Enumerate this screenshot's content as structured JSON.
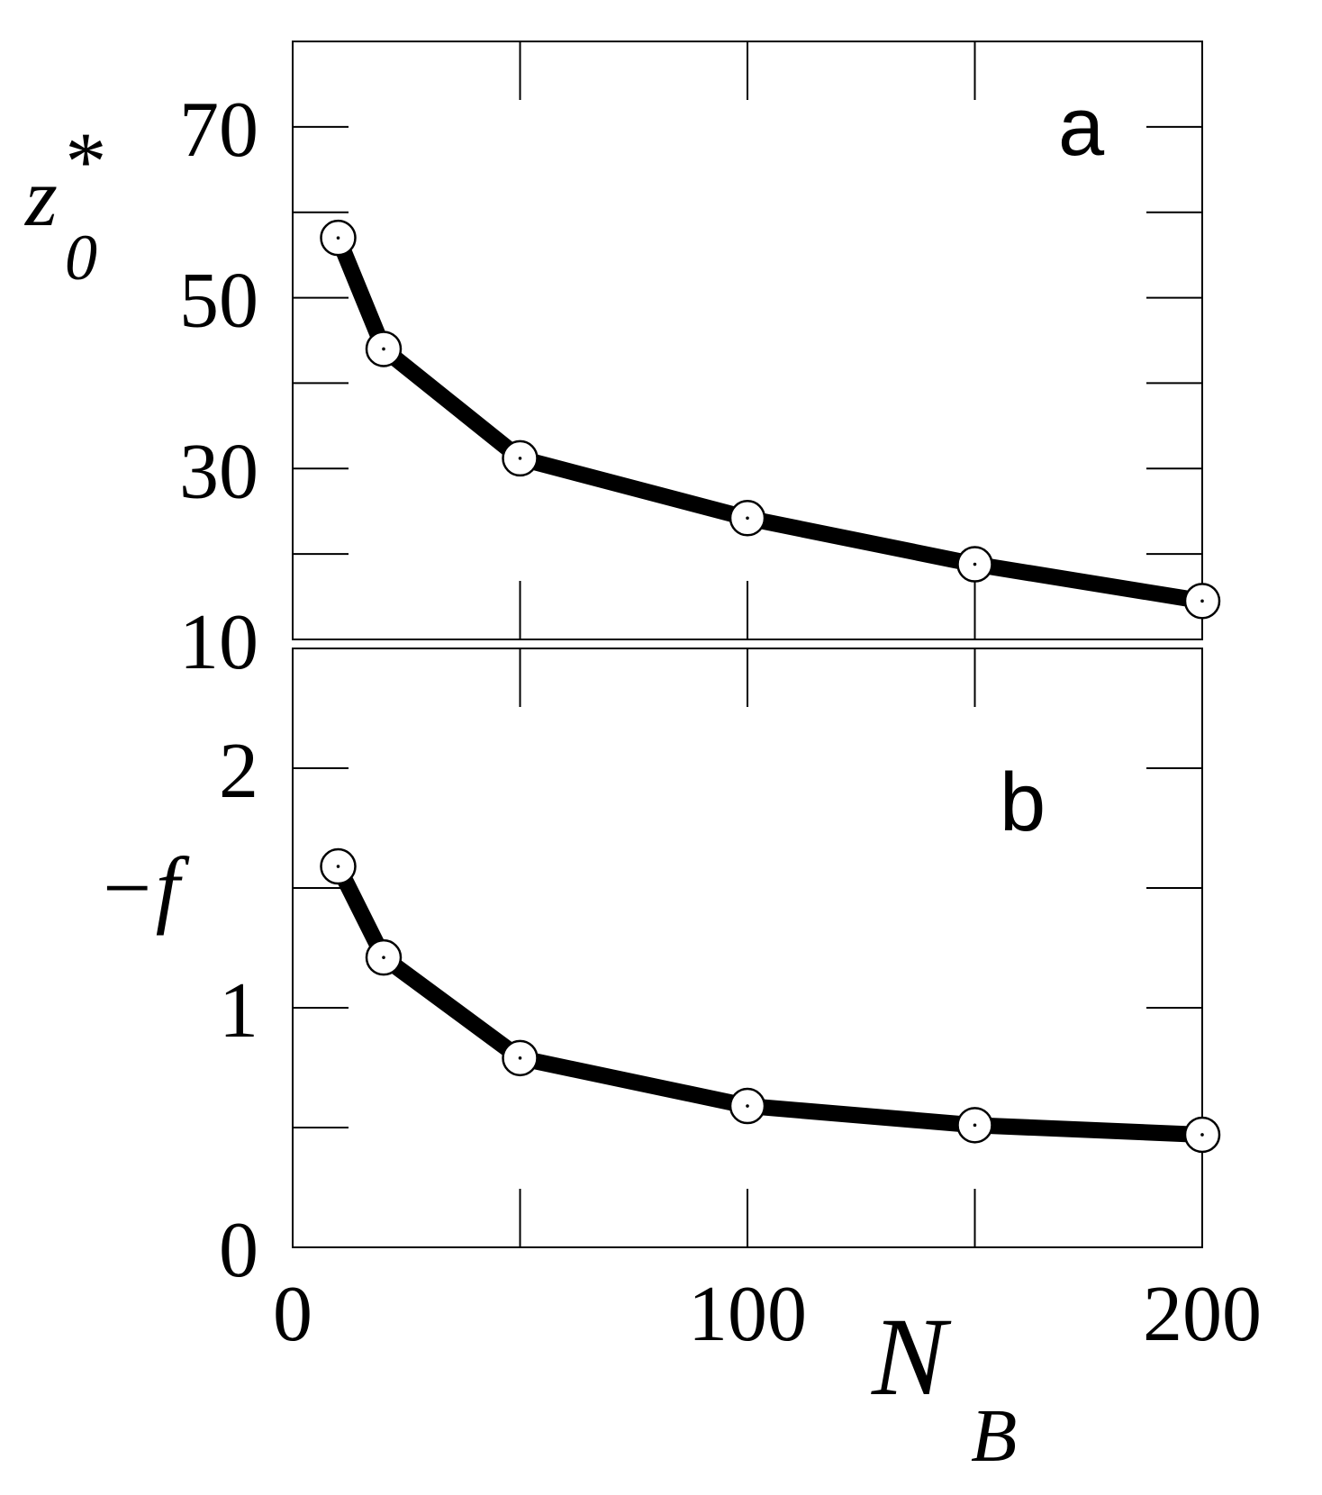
{
  "chart_data": [
    {
      "type": "line",
      "panel_label": "a",
      "ylabel": "z",
      "ylabel_sup": "*",
      "ylabel_sub": "0",
      "ylim": [
        10,
        80
      ],
      "xlim": [
        0,
        200
      ],
      "yticks_labeled": [
        "10",
        "30",
        "50",
        "70"
      ],
      "x": [
        10,
        20,
        50,
        100,
        150,
        200
      ],
      "values": [
        57,
        44,
        31.2,
        24.2,
        18.8,
        14.5
      ],
      "markers": "open-circle"
    },
    {
      "type": "line",
      "panel_label": "b",
      "ylabel": "−f",
      "ylim": [
        0,
        2.5
      ],
      "xlim": [
        0,
        200
      ],
      "yticks_labeled": [
        "0",
        "1",
        "2"
      ],
      "xticks_labeled": [
        "0",
        "100",
        "200"
      ],
      "xlabel": "N",
      "xlabel_sub": "B",
      "x": [
        10,
        20,
        50,
        100,
        150,
        200
      ],
      "values": [
        1.59,
        1.21,
        0.79,
        0.59,
        0.51,
        0.47
      ],
      "markers": "open-circle"
    }
  ]
}
